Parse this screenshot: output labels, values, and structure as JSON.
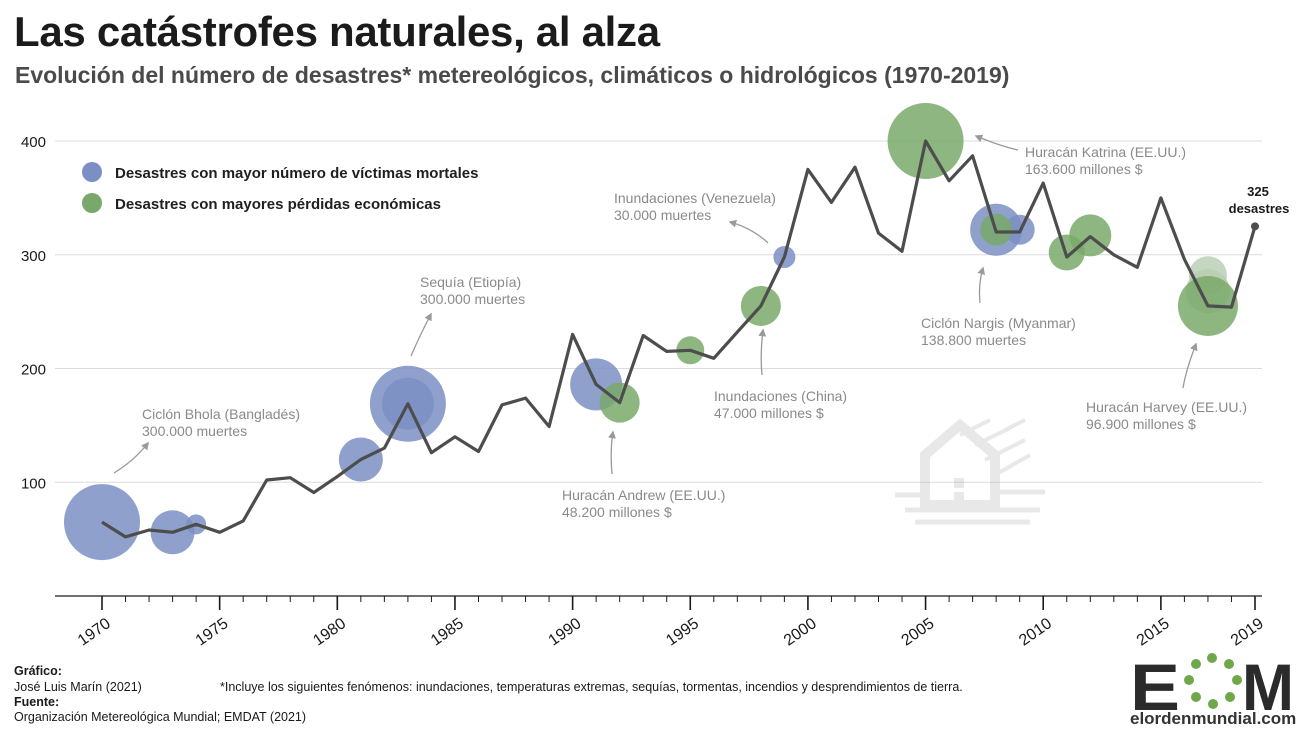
{
  "header": {
    "title": "Las catástrofes naturales, al alza",
    "subtitle": "Evolución del número de desastres* metereológicos, climáticos o hidrológicos (1970-2019)"
  },
  "legend": {
    "deaths_label": "Desastres con mayor número de víctimas mortales",
    "losses_label": "Desastres con mayores pérdidas económicas"
  },
  "annotations": {
    "bhola_name": "Ciclón Bhola (Bangladés)",
    "bhola_value": "300.000 muertes",
    "etiopia_name": "Sequía (Etiopía)",
    "etiopia_value": "300.000 muertes",
    "andrew_name": "Huracán Andrew (EE.UU.)",
    "andrew_value": "48.200 millones $",
    "venezuela_name": "Inundaciones (Venezuela)",
    "venezuela_value": "30.000 muertes",
    "china_name": "Inundaciones (China)",
    "china_value": "47.000 millones $",
    "katrina_name": "Huracán Katrina (EE.UU.)",
    "katrina_value": "163.600 millones $",
    "nargis_name": "Ciclón Nargis (Myanmar)",
    "nargis_value": "138.800 muertes",
    "harvey_name": "Huracán Harvey (EE.UU.)",
    "harvey_value": "96.900 millones $",
    "end_value": "325",
    "end_unit": "desastres"
  },
  "footer": {
    "grafico_label": "Gráfico:",
    "grafico_author": "José Luis Marín (2021)",
    "fuente_label": "Fuente:",
    "fuente_value": "Organización Metereológica Mundial; EMDAT (2021)",
    "note": "*Incluye los siguientes fenómenos: inundaciones, temperaturas extremas, sequías, tormentas, incendios y desprendimientos de tierra.",
    "site": "elordenmundial.com",
    "logo_text": "EOM"
  },
  "colors": {
    "line": "#4d4d4d",
    "deaths": "#7b8fc4",
    "losses": "#79a96a",
    "grid": "#dcdcdc",
    "annotation": "#8a8a8a"
  },
  "chart_data": {
    "type": "line",
    "title": "Las catástrofes naturales, al alza",
    "xlabel": "",
    "ylabel": "",
    "xlim": [
      1970,
      2019
    ],
    "ylim": [
      0,
      400
    ],
    "yticks": [
      100,
      200,
      300,
      400
    ],
    "xticks": [
      1970,
      1975,
      1980,
      1985,
      1990,
      1995,
      2000,
      2005,
      2010,
      2015,
      2019
    ],
    "grid": true,
    "legend_position": "top-left",
    "series": [
      {
        "name": "Número de desastres",
        "x": [
          1970,
          1971,
          1972,
          1973,
          1974,
          1975,
          1976,
          1977,
          1978,
          1979,
          1980,
          1981,
          1982,
          1983,
          1984,
          1985,
          1986,
          1987,
          1988,
          1989,
          1990,
          1991,
          1992,
          1993,
          1994,
          1995,
          1996,
          1997,
          1998,
          1999,
          2000,
          2001,
          2002,
          2003,
          2004,
          2005,
          2006,
          2007,
          2008,
          2009,
          2010,
          2011,
          2012,
          2013,
          2014,
          2015,
          2016,
          2017,
          2018,
          2019
        ],
        "y": [
          65,
          52,
          58,
          56,
          63,
          56,
          66,
          102,
          104,
          91,
          105,
          120,
          130,
          169,
          126,
          140,
          127,
          168,
          174,
          149,
          230,
          186,
          170,
          229,
          215,
          216,
          209,
          232,
          255,
          298,
          375,
          346,
          377,
          319,
          303,
          400,
          365,
          387,
          320,
          320,
          363,
          298,
          316,
          300,
          289,
          350,
          296,
          255,
          254,
          325
        ]
      }
    ],
    "bubbles": [
      {
        "year": 1970,
        "value": 65,
        "category": "deaths",
        "size": 38
      },
      {
        "year": 1973,
        "value": 56,
        "category": "deaths",
        "size": 22
      },
      {
        "year": 1974,
        "value": 63,
        "category": "deaths",
        "size": 10
      },
      {
        "year": 1981,
        "value": 120,
        "category": "deaths",
        "size": 22
      },
      {
        "year": 1983,
        "value": 169,
        "category": "deaths",
        "size": 38
      },
      {
        "year": 1983,
        "value": 169,
        "category": "deaths",
        "size": 26
      },
      {
        "year": 1991,
        "value": 186,
        "category": "deaths",
        "size": 26
      },
      {
        "year": 1992,
        "value": 170,
        "category": "losses",
        "size": 20
      },
      {
        "year": 1995,
        "value": 216,
        "category": "losses",
        "size": 14
      },
      {
        "year": 1998,
        "value": 255,
        "category": "losses",
        "size": 20
      },
      {
        "year": 1999,
        "value": 298,
        "category": "deaths",
        "size": 11
      },
      {
        "year": 2005,
        "value": 400,
        "category": "losses",
        "size": 38
      },
      {
        "year": 2008,
        "value": 322,
        "category": "deaths",
        "size": 26
      },
      {
        "year": 2009,
        "value": 322,
        "category": "deaths",
        "size": 15
      },
      {
        "year": 2008,
        "value": 322,
        "category": "losses",
        "size": 16
      },
      {
        "year": 2011,
        "value": 302,
        "category": "losses",
        "size": 18
      },
      {
        "year": 2012,
        "value": 317,
        "category": "losses",
        "size": 21
      },
      {
        "year": 2017,
        "value": 282,
        "category": "losses-light",
        "size": 19
      },
      {
        "year": 2017,
        "value": 268,
        "category": "losses-light",
        "size": 22
      },
      {
        "year": 2017,
        "value": 255,
        "category": "losses",
        "size": 30
      }
    ]
  }
}
